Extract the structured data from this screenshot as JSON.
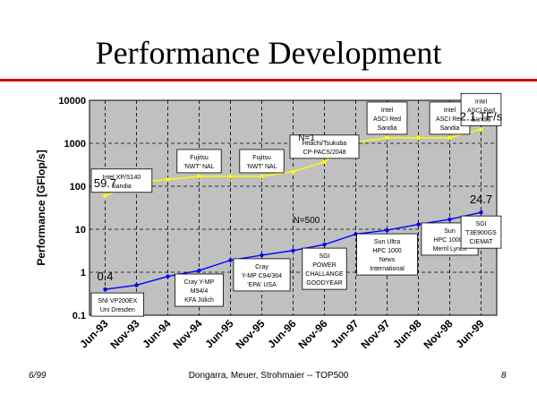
{
  "slide": {
    "title": "Performance Development",
    "footer_left": "6/99",
    "footer_center": "Dongarra, Meuer, Strohmaier -- TOP500",
    "footer_right": "8"
  },
  "chart_data": {
    "type": "line",
    "ylabel": "Performance [GFlop/s]",
    "yscale": "log",
    "ylim": [
      0.1,
      10000
    ],
    "yticks": [
      "0.1",
      "1",
      "10",
      "100",
      "1000",
      "10000"
    ],
    "xticks": [
      "Jun-93",
      "Nov-93",
      "Jun-94",
      "Nov-94",
      "Jun-95",
      "Nov-95",
      "Jun-96",
      "Nov-96",
      "Jun-97",
      "Nov-97",
      "Jun-98",
      "Nov-98",
      "Jun-99"
    ],
    "grid": true,
    "plot_background": "#c0c0c0",
    "series": [
      {
        "name": "N=1",
        "color": "#ffff00",
        "values": [
          59.7,
          124,
          143.4,
          170,
          170,
          170,
          220.4,
          368.2,
          1068,
          1338,
          1338,
          1338,
          2121
        ]
      },
      {
        "name": "N=500",
        "color": "#0000ff",
        "values": [
          0.4,
          0.5,
          0.8,
          1.1,
          1.9,
          2.5,
          3.2,
          4.4,
          7.7,
          9.5,
          13,
          17,
          24.7
        ]
      }
    ],
    "value_labels": [
      {
        "text": "59.7",
        "series": 0,
        "index": 0
      },
      {
        "text": "2.1 TF/s",
        "series": 0,
        "index": 12
      },
      {
        "text": "0.4",
        "series": 1,
        "index": 0
      },
      {
        "text": "24.7",
        "series": 1,
        "index": 12
      }
    ],
    "series_labels": [
      {
        "text": "N=1",
        "series": 0,
        "index": 7
      },
      {
        "text": "N=500",
        "series": 1,
        "index": 7
      }
    ],
    "annotations": [
      {
        "lines": [
          "Intel XP/S140",
          "Sandia"
        ],
        "series": 0,
        "index": 0
      },
      {
        "lines": [
          "Fujitsu",
          "'NWT' NAL"
        ],
        "series": 0,
        "index": 3
      },
      {
        "lines": [
          "Fujitsu",
          "'NWT' NAL"
        ],
        "series": 0,
        "index": 5
      },
      {
        "lines": [
          "Hitachi/Tsukuba",
          "CP-PACS/2048"
        ],
        "series": 0,
        "index": 7
      },
      {
        "lines": [
          "Intel",
          "ASCI Red",
          "Sandia"
        ],
        "series": 0,
        "index": 9
      },
      {
        "lines": [
          "Intel",
          "ASCI Red",
          "Sandia"
        ],
        "series": 0,
        "index": 11
      },
      {
        "lines": [
          "Intel",
          "ASCI Red",
          "Sandia"
        ],
        "series": 0,
        "index": 12
      },
      {
        "lines": [
          "SNI VP200EX",
          "Uni Dresden"
        ],
        "series": 1,
        "index": 0
      },
      {
        "lines": [
          "Cray Y-MP",
          "M94/4",
          "KFA Jülich"
        ],
        "series": 1,
        "index": 3
      },
      {
        "lines": [
          "Cray",
          "Y-MP C94/364",
          "'EPA' USA"
        ],
        "series": 1,
        "index": 5
      },
      {
        "lines": [
          "SGI",
          "POWER",
          "CHALLANGE",
          "GOODYEAR"
        ],
        "series": 1,
        "index": 7
      },
      {
        "lines": [
          "Sun Ultra",
          "HPC 1000",
          "News",
          "International"
        ],
        "series": 1,
        "index": 9
      },
      {
        "lines": [
          "Sun",
          "HPC 10000",
          "Merril Lynch"
        ],
        "series": 1,
        "index": 11
      },
      {
        "lines": [
          "SGI",
          "T3E900GS",
          "CIEMAT"
        ],
        "series": 1,
        "index": 12
      }
    ]
  }
}
